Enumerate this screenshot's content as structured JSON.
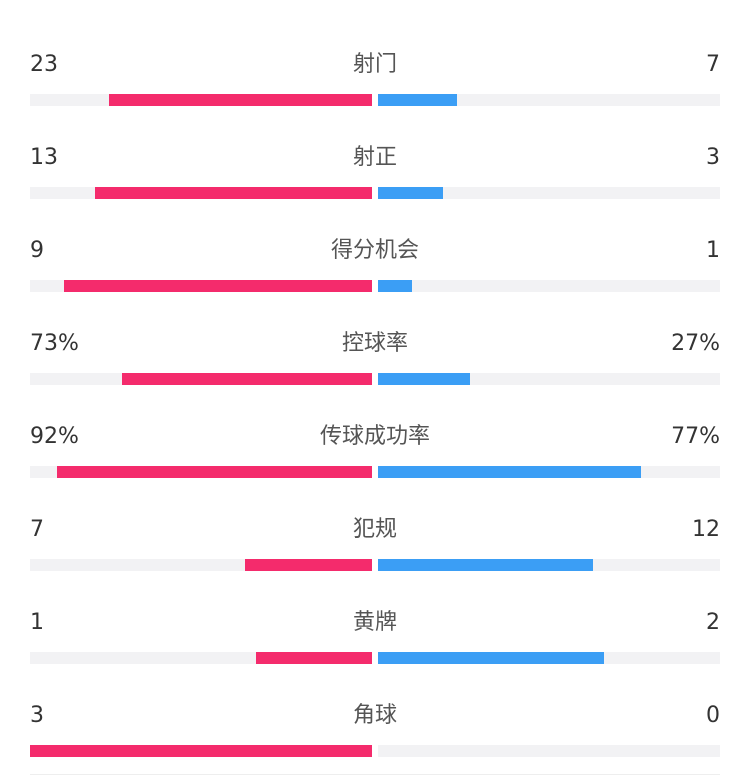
{
  "colors": {
    "home": "#f42b6c",
    "away": "#3b9ef5",
    "track": "#f2f2f4"
  },
  "stats": [
    {
      "label": "射门",
      "home": "23",
      "away": "7",
      "home_ratio": 0.77,
      "away_ratio": 0.23
    },
    {
      "label": "射正",
      "home": "13",
      "away": "3",
      "home_ratio": 0.81,
      "away_ratio": 0.19
    },
    {
      "label": "得分机会",
      "home": "9",
      "away": "1",
      "home_ratio": 0.9,
      "away_ratio": 0.1
    },
    {
      "label": "控球率",
      "home": "73%",
      "away": "27%",
      "home_ratio": 0.73,
      "away_ratio": 0.27
    },
    {
      "label": "传球成功率",
      "home": "92%",
      "away": "77%",
      "home_ratio": 0.92,
      "away_ratio": 0.77
    },
    {
      "label": "犯规",
      "home": "7",
      "away": "12",
      "home_ratio": 0.37,
      "away_ratio": 0.63
    },
    {
      "label": "黄牌",
      "home": "1",
      "away": "2",
      "home_ratio": 0.34,
      "away_ratio": 0.66
    },
    {
      "label": "角球",
      "home": "3",
      "away": "0",
      "home_ratio": 1.0,
      "away_ratio": 0.0
    }
  ]
}
